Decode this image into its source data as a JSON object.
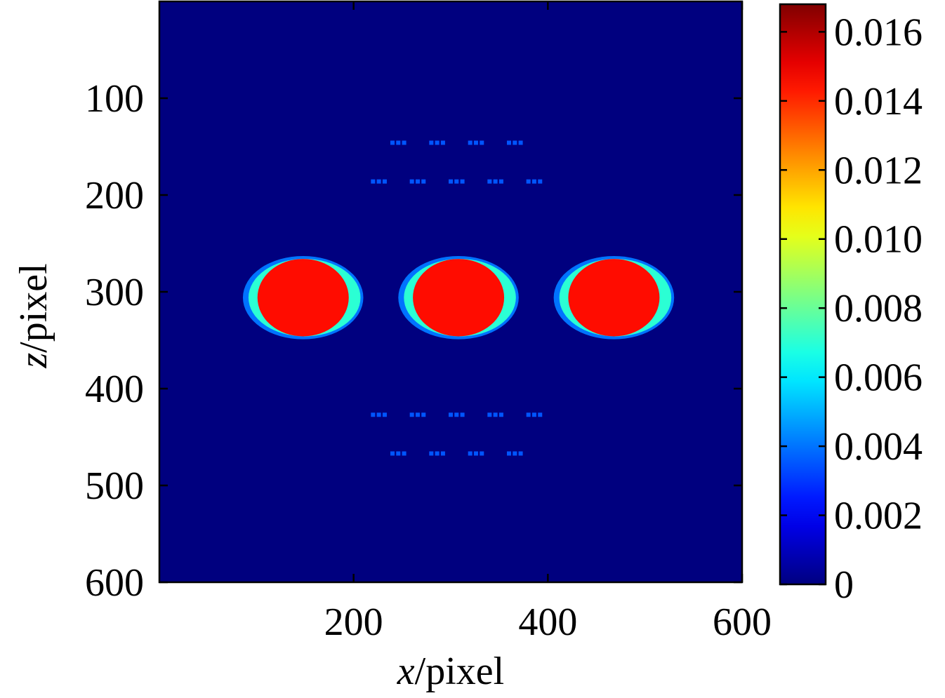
{
  "chart_data": {
    "type": "heatmap",
    "title": "",
    "xlabel": {
      "var": "x",
      "rest": "/pixel"
    },
    "ylabel": {
      "var": "z",
      "rest": "/pixel"
    },
    "xlim": [
      0,
      600
    ],
    "ylim": [
      0,
      600
    ],
    "y_inverted": true,
    "x_ticks": [
      200,
      400,
      600
    ],
    "x_tick_labels": [
      "200",
      "400",
      "600"
    ],
    "y_ticks": [
      100,
      200,
      300,
      400,
      500,
      600
    ],
    "y_tick_labels": [
      "100",
      "200",
      "300",
      "400",
      "500",
      "600"
    ],
    "grid": false,
    "colormap": "jet",
    "colorbar": {
      "min": 0,
      "max": 0.0168,
      "ticks": [
        0,
        0.002,
        0.004,
        0.006,
        0.008,
        0.01,
        0.012,
        0.014,
        0.016
      ],
      "tick_labels": [
        "0",
        "0.002",
        "0.004",
        "0.006",
        "0.008",
        "0.010",
        "0.012",
        "0.014",
        "0.016"
      ],
      "position": "right"
    },
    "background_value": 0,
    "disks": [
      {
        "cx": 148,
        "cz": 306,
        "rx": 47,
        "rz": 40,
        "value": 0.0145,
        "rim_value": 0.007,
        "rim_x": 15,
        "rim_z": 3
      },
      {
        "cx": 308,
        "cz": 306,
        "rx": 47,
        "rz": 40,
        "value": 0.0145,
        "rim_value": 0.007,
        "rim_x": 15,
        "rim_z": 3
      },
      {
        "cx": 468,
        "cz": 306,
        "rx": 47,
        "rz": 40,
        "value": 0.0145,
        "rim_value": 0.007,
        "rim_x": 15,
        "rim_z": 3
      }
    ],
    "point_groups": {
      "value": 0.0035,
      "points_per_group": 3,
      "point_spacing": 6,
      "rows": [
        {
          "z": 146,
          "x": [
            246,
            286,
            326,
            366
          ]
        },
        {
          "z": 186,
          "x": [
            226,
            266,
            306,
            346,
            386
          ]
        },
        {
          "z": 427,
          "x": [
            226,
            266,
            306,
            346,
            386
          ]
        },
        {
          "z": 467,
          "x": [
            246,
            286,
            326,
            366
          ]
        }
      ]
    }
  }
}
